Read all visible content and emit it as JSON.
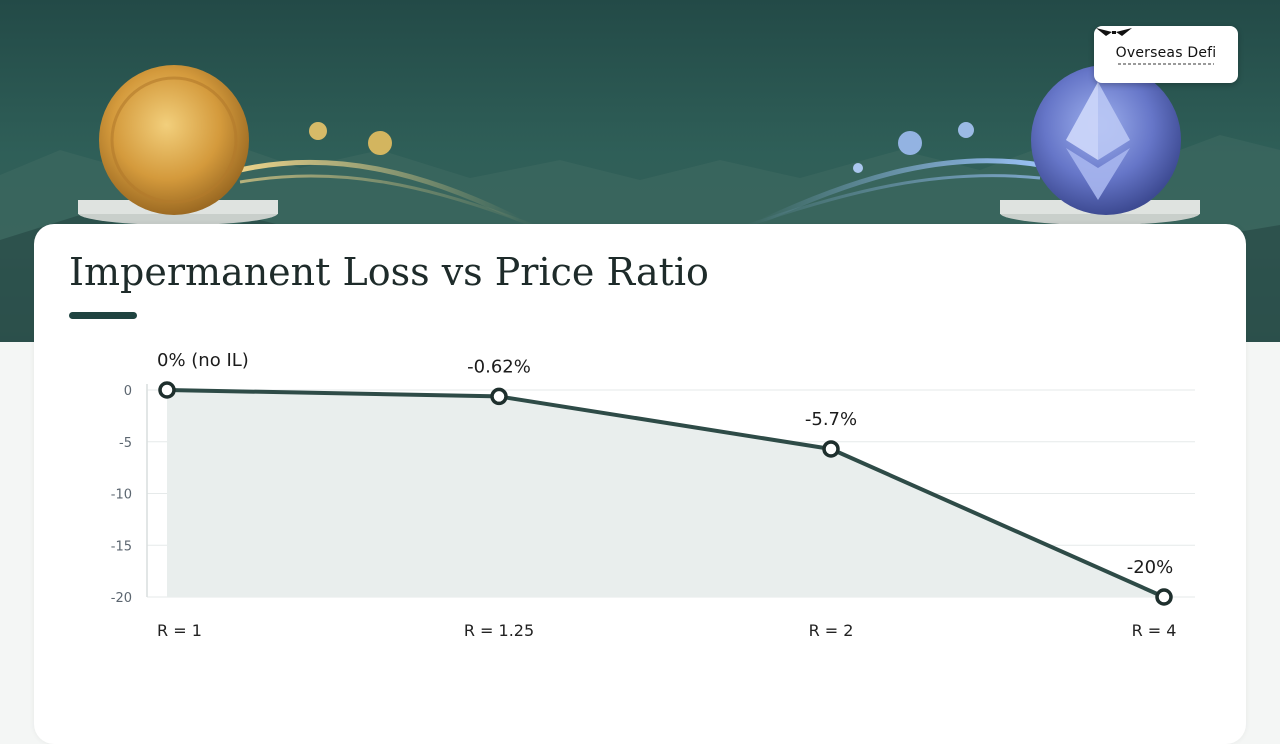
{
  "brand": {
    "name": "Overseas Defi"
  },
  "colors": {
    "line": "#2e4b47",
    "area": "#e9eeed",
    "grid": "#e6eaea",
    "title_bar": "#1f4340"
  },
  "icons": {
    "left_coin": "gold-coin-icon",
    "right_coin": "ethereum-coin-icon",
    "logo": "wings-logo-icon"
  },
  "chart_data": {
    "type": "area",
    "title": "Impermanent Loss vs Price Ratio",
    "categories": [
      "R = 1",
      "R = 1.25",
      "R = 2",
      "R = 4"
    ],
    "values": [
      0,
      -0.62,
      -5.7,
      -20
    ],
    "data_labels": [
      "0% (no IL)",
      "-0.62%",
      "-5.7%",
      "-20%"
    ],
    "y_ticks": [
      "0",
      "-5",
      "-10",
      "-15",
      "-20"
    ],
    "ylim": [
      -20,
      0
    ],
    "grid": true,
    "legend": "none"
  }
}
